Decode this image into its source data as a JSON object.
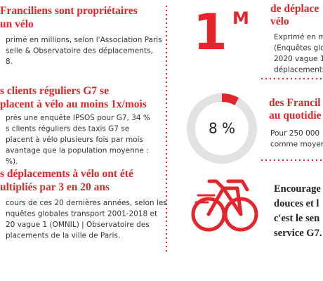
{
  "left": [
    {
      "heading": [
        "Franciliens sont propriétaires",
        "un vélo"
      ],
      "body": [
        "primé en millions, selon l'Association Paris",
        "selle & Observatoire des déplacements,",
        "8."
      ]
    },
    {
      "heading": [
        "s clients réguliers G7 se",
        "placent à vélo au moins 1x/mois"
      ],
      "body": [
        "près une enquête IPSOS pour G7, 34 %",
        "s clients réguliers des taxis G7 se",
        "placent à vélo plusieurs fois par mois",
        "avantage que la population moyenne :",
        "%)."
      ]
    },
    {
      "heading": [
        "s déplacements à vélo ont été",
        "ultipliés par 3 en 20 ans"
      ],
      "body": [
        "cours de ces 20 dernières années, selon les",
        "nquêtes globales transport 2001-2018 et",
        "20 vague 1 (OMNIL) | Observatoire des",
        "placements de la ville de Paris."
      ]
    }
  ],
  "right": {
    "big": {
      "number": "1",
      "unit": "M",
      "heading": [
        "de déplace",
        "vélo"
      ],
      "body": [
        "Exprimé en m",
        "(Enquêtes glo",
        "2020 vague 1",
        "déplacements"
      ]
    },
    "donut": {
      "value": 8,
      "label": "8 %",
      "heading": [
        "des Francil",
        "au quotidie"
      ],
      "body": [
        "Pour 250 000",
        "comme moyer"
      ]
    },
    "bike": {
      "text": [
        "Encourage",
        "douces et l",
        "c'est le sen",
        "service G7."
      ]
    }
  }
}
